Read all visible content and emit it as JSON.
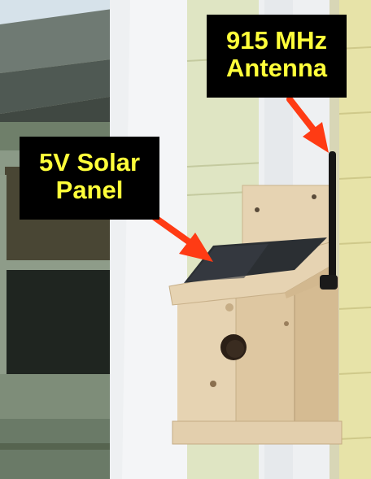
{
  "callouts": {
    "antenna": {
      "line1": "915 MHz",
      "line2": "Antenna"
    },
    "solar": {
      "line1": "5V Solar",
      "line2": "Panel"
    }
  },
  "colors": {
    "label_bg": "#000000",
    "label_text": "#ffff3a",
    "arrow": "#ff3b14",
    "siding": "#dde4c2",
    "trim": "#f1f3f5",
    "birdhouse_wood": "#e3cfae",
    "solar_panel": "#2b2f33"
  }
}
